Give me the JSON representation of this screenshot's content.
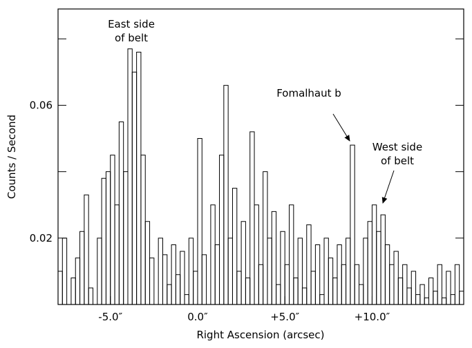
{
  "chart_data": {
    "type": "histogram",
    "x_label": "Right Ascension (arcsec)",
    "y_label": "Counts / Second",
    "bins": [
      -8,
      -7.75,
      -7.5,
      -7.25,
      -7,
      -6.75,
      -6.5,
      -6.25,
      -6,
      -5.75,
      -5.5,
      -5.25,
      -5,
      -4.75,
      -4.5,
      -4.25,
      -4,
      -3.75,
      -3.5,
      -3.25,
      -3,
      -2.75,
      -2.5,
      -2.25,
      -2,
      -1.75,
      -1.5,
      -1.25,
      -1,
      -0.75,
      -0.5,
      -0.25,
      0,
      0.25,
      0.5,
      0.75,
      1,
      1.25,
      1.5,
      1.75,
      2,
      2.25,
      2.5,
      2.75,
      3,
      3.25,
      3.5,
      3.75,
      4,
      4.25,
      4.5,
      4.75,
      5,
      5.25,
      5.5,
      5.75,
      6,
      6.25,
      6.5,
      6.75,
      7,
      7.25,
      7.5,
      7.75,
      8,
      8.25,
      8.5,
      8.75,
      9,
      9.25,
      9.5,
      9.75,
      10,
      10.25,
      10.5,
      10.75,
      11,
      11.25,
      11.5,
      11.75,
      12,
      12.25,
      12.5,
      12.75,
      13,
      13.25,
      13.5,
      13.75,
      14,
      14.25,
      14.5,
      14.75,
      15,
      15.25
    ],
    "values": [
      0.01,
      0.02,
      0.0,
      0.008,
      0.014,
      0.022,
      0.033,
      0.005,
      0.0,
      0.02,
      0.038,
      0.04,
      0.045,
      0.03,
      0.055,
      0.04,
      0.077,
      0.07,
      0.076,
      0.045,
      0.025,
      0.014,
      0.0,
      0.02,
      0.015,
      0.006,
      0.018,
      0.009,
      0.016,
      0.003,
      0.02,
      0.01,
      0.05,
      0.015,
      0.0,
      0.03,
      0.018,
      0.045,
      0.066,
      0.02,
      0.035,
      0.01,
      0.025,
      0.008,
      0.052,
      0.03,
      0.012,
      0.04,
      0.02,
      0.028,
      0.006,
      0.022,
      0.012,
      0.03,
      0.008,
      0.02,
      0.005,
      0.024,
      0.01,
      0.018,
      0.003,
      0.02,
      0.014,
      0.008,
      0.018,
      0.012,
      0.02,
      0.048,
      0.012,
      0.006,
      0.02,
      0.025,
      0.03,
      0.022,
      0.027,
      0.018,
      0.012,
      0.016,
      0.008,
      0.012,
      0.005,
      0.01,
      0.003,
      0.006,
      0.002,
      0.008,
      0.004,
      0.012,
      0.002,
      0.01,
      0.003,
      0.012,
      0.004
    ],
    "color": "#000000",
    "xlim": [
      -8,
      15.25
    ],
    "ylim": [
      0,
      0.089
    ],
    "xticks": [
      {
        "value": -5,
        "label": "-5.0″"
      },
      {
        "value": 0,
        "label": "0.0″"
      },
      {
        "value": 5,
        "label": "+5.0″"
      },
      {
        "value": 10,
        "label": "+10.0″"
      }
    ],
    "yticks": [
      0.02,
      {
        "value": 0.04,
        "label": null
      },
      0.06,
      {
        "value": 0.08,
        "label": null
      }
    ],
    "annotations": [
      {
        "text": [
          "East side",
          "of belt"
        ]
      },
      {
        "text": [
          "Fomalhaut b"
        ]
      },
      {
        "text": [
          "West side",
          "of belt"
        ]
      }
    ]
  }
}
